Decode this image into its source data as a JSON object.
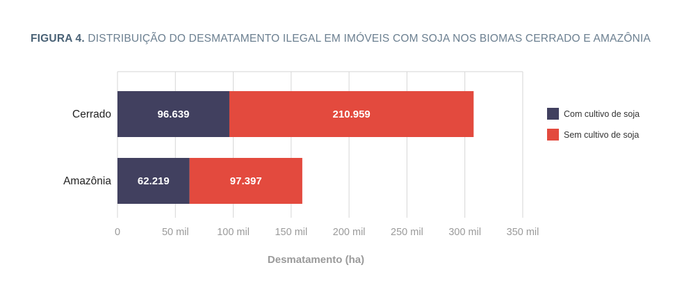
{
  "figure": {
    "label": "FIGURA 4.",
    "title": "DISTRIBUIÇÃO DO DESMATAMENTO ILEGAL EM IMÓVEIS COM SOJA NOS BIOMAS CERRADO E AMAZÔNIA"
  },
  "chart_data": {
    "type": "bar",
    "orientation": "horizontal",
    "stacked": true,
    "categories": [
      "Cerrado",
      "Amazônia"
    ],
    "series": [
      {
        "name": "Com cultivo de soja",
        "values": [
          96639,
          62219
        ],
        "labels": [
          "96.639",
          "62.219"
        ],
        "color": "#41405f"
      },
      {
        "name": "Sem cultivo de soja",
        "values": [
          210959,
          97397
        ],
        "labels": [
          "210.959",
          "97.397"
        ],
        "color": "#e34a3e"
      }
    ],
    "xlabel": "Desmatamento (ha)",
    "ylabel": "",
    "xlim": [
      0,
      350000
    ],
    "xticks": [
      0,
      50000,
      100000,
      150000,
      200000,
      250000,
      300000,
      350000
    ],
    "xtick_labels": [
      "0",
      "50 mil",
      "100 mil",
      "150 mil",
      "200 mil",
      "250 mil",
      "300 mil",
      "350 mil"
    ],
    "grid": "vertical",
    "legend": "right"
  }
}
